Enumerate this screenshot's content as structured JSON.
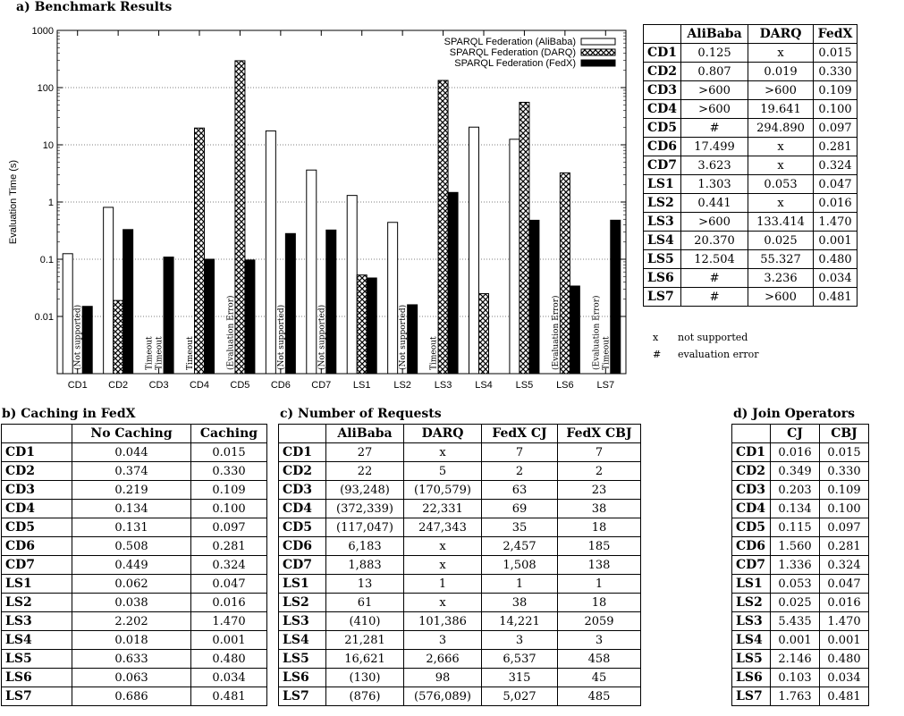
{
  "sections": {
    "a_title": "a) Benchmark Results",
    "b_title": "b) Caching in FedX",
    "c_title": "c) Number of Requests",
    "d_title": "d) Join Operators"
  },
  "chart_data": {
    "type": "bar",
    "ylabel": "Evaluation Time (s)",
    "xlabel": "",
    "yscale": "log",
    "ylim": [
      0.001,
      1000
    ],
    "yticks": [
      "1000",
      "100",
      "10",
      "1",
      "0.1",
      "0.01"
    ],
    "categories": [
      "CD1",
      "CD2",
      "CD3",
      "CD4",
      "CD5",
      "CD6",
      "CD7",
      "LS1",
      "LS2",
      "LS3",
      "LS4",
      "LS5",
      "LS6",
      "LS7"
    ],
    "series": [
      {
        "name": "SPARQL Federation (AliBaba)",
        "color": "#ffffff",
        "values": [
          0.125,
          0.807,
          null,
          null,
          null,
          17.499,
          3.623,
          1.303,
          0.441,
          null,
          20.37,
          12.504,
          null,
          null
        ]
      },
      {
        "name": "SPARQL Federation (DARQ)",
        "color": "hatch",
        "values": [
          null,
          0.019,
          null,
          19.641,
          294.89,
          null,
          null,
          0.053,
          null,
          133.414,
          0.025,
          55.327,
          3.236,
          null
        ]
      },
      {
        "name": "SPARQL Federation (FedX)",
        "color": "#000000",
        "values": [
          0.015,
          0.33,
          0.109,
          0.1,
          0.097,
          0.281,
          0.324,
          0.047,
          0.016,
          1.47,
          0.001,
          0.48,
          0.034,
          0.481
        ]
      }
    ],
    "annotations": [
      {
        "cat": "CD1",
        "series": 1,
        "text": "(Not supported)"
      },
      {
        "cat": "CD3",
        "series": 0,
        "text": "Timeout"
      },
      {
        "cat": "CD3",
        "series": 1,
        "text": "Timeout"
      },
      {
        "cat": "CD4",
        "series": 0,
        "text": "Timeout"
      },
      {
        "cat": "CD5",
        "series": 0,
        "text": "(Evaluation Error)"
      },
      {
        "cat": "CD6",
        "series": 1,
        "text": "(Not supported)"
      },
      {
        "cat": "CD7",
        "series": 1,
        "text": "(Not supported)"
      },
      {
        "cat": "LS2",
        "series": 1,
        "text": "(Not supported)"
      },
      {
        "cat": "LS3",
        "series": 0,
        "text": "Timeout"
      },
      {
        "cat": "LS6",
        "series": 0,
        "text": "(Evaluation Error)"
      },
      {
        "cat": "LS7",
        "series": 0,
        "text": "(Evaluation Error)"
      },
      {
        "cat": "LS7",
        "series": 1,
        "text": "Timeout"
      }
    ]
  },
  "table_a": {
    "headers": [
      "",
      "AliBaba",
      "DARQ",
      "FedX"
    ],
    "rows": [
      [
        "CD1",
        "0.125",
        "x",
        "0.015"
      ],
      [
        "CD2",
        "0.807",
        "0.019",
        "0.330"
      ],
      [
        "CD3",
        ">600",
        ">600",
        "0.109"
      ],
      [
        "CD4",
        ">600",
        "19.641",
        "0.100"
      ],
      [
        "CD5",
        "#",
        "294.890",
        "0.097"
      ],
      [
        "CD6",
        "17.499",
        "x",
        "0.281"
      ],
      [
        "CD7",
        "3.623",
        "x",
        "0.324"
      ],
      [
        "LS1",
        "1.303",
        "0.053",
        "0.047"
      ],
      [
        "LS2",
        "0.441",
        "x",
        "0.016"
      ],
      [
        "LS3",
        ">600",
        "133.414",
        "1.470"
      ],
      [
        "LS4",
        "20.370",
        "0.025",
        "0.001"
      ],
      [
        "LS5",
        "12.504",
        "55.327",
        "0.480"
      ],
      [
        "LS6",
        "#",
        "3.236",
        "0.034"
      ],
      [
        "LS7",
        "#",
        ">600",
        "0.481"
      ]
    ],
    "notes": [
      {
        "symbol": "x",
        "text": "not supported"
      },
      {
        "symbol": "#",
        "text": "evaluation error"
      }
    ]
  },
  "table_b": {
    "headers": [
      "",
      "No Caching",
      "Caching"
    ],
    "rows": [
      [
        "CD1",
        "0.044",
        "0.015"
      ],
      [
        "CD2",
        "0.374",
        "0.330"
      ],
      [
        "CD3",
        "0.219",
        "0.109"
      ],
      [
        "CD4",
        "0.134",
        "0.100"
      ],
      [
        "CD5",
        "0.131",
        "0.097"
      ],
      [
        "CD6",
        "0.508",
        "0.281"
      ],
      [
        "CD7",
        "0.449",
        "0.324"
      ],
      [
        "LS1",
        "0.062",
        "0.047"
      ],
      [
        "LS2",
        "0.038",
        "0.016"
      ],
      [
        "LS3",
        "2.202",
        "1.470"
      ],
      [
        "LS4",
        "0.018",
        "0.001"
      ],
      [
        "LS5",
        "0.633",
        "0.480"
      ],
      [
        "LS6",
        "0.063",
        "0.034"
      ],
      [
        "LS7",
        "0.686",
        "0.481"
      ]
    ]
  },
  "table_c": {
    "headers": [
      "",
      "AliBaba",
      "DARQ",
      "FedX CJ",
      "FedX CBJ"
    ],
    "rows": [
      [
        "CD1",
        "27",
        "x",
        "7",
        "7"
      ],
      [
        "CD2",
        "22",
        "5",
        "2",
        "2"
      ],
      [
        "CD3",
        "(93,248)",
        "(170,579)",
        "63",
        "23"
      ],
      [
        "CD4",
        "(372,339)",
        "22,331",
        "69",
        "38"
      ],
      [
        "CD5",
        "(117,047)",
        "247,343",
        "35",
        "18"
      ],
      [
        "CD6",
        "6,183",
        "x",
        "2,457",
        "185"
      ],
      [
        "CD7",
        "1,883",
        "x",
        "1,508",
        "138"
      ],
      [
        "LS1",
        "13",
        "1",
        "1",
        "1"
      ],
      [
        "LS2",
        "61",
        "x",
        "38",
        "18"
      ],
      [
        "LS3",
        "(410)",
        "101,386",
        "14,221",
        "2059"
      ],
      [
        "LS4",
        "21,281",
        "3",
        "3",
        "3"
      ],
      [
        "LS5",
        "16,621",
        "2,666",
        "6,537",
        "458"
      ],
      [
        "LS6",
        "(130)",
        "98",
        "315",
        "45"
      ],
      [
        "LS7",
        "(876)",
        "(576,089)",
        "5,027",
        "485"
      ]
    ]
  },
  "table_d": {
    "headers": [
      "",
      "CJ",
      "CBJ"
    ],
    "rows": [
      [
        "CD1",
        "0.016",
        "0.015"
      ],
      [
        "CD2",
        "0.349",
        "0.330"
      ],
      [
        "CD3",
        "0.203",
        "0.109"
      ],
      [
        "CD4",
        "0.134",
        "0.100"
      ],
      [
        "CD5",
        "0.115",
        "0.097"
      ],
      [
        "CD6",
        "1.560",
        "0.281"
      ],
      [
        "CD7",
        "1.336",
        "0.324"
      ],
      [
        "LS1",
        "0.053",
        "0.047"
      ],
      [
        "LS2",
        "0.025",
        "0.016"
      ],
      [
        "LS3",
        "5.435",
        "1.470"
      ],
      [
        "LS4",
        "0.001",
        "0.001"
      ],
      [
        "LS5",
        "2.146",
        "0.480"
      ],
      [
        "LS6",
        "0.103",
        "0.034"
      ],
      [
        "LS7",
        "1.763",
        "0.481"
      ]
    ]
  }
}
